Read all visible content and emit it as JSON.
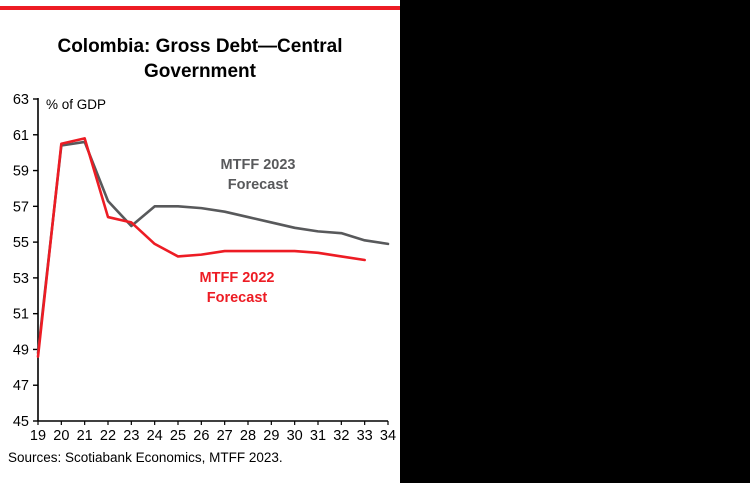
{
  "chart": {
    "title_line1": "Colombia: Gross Debt—Central",
    "title_line2": "Government",
    "unit_label": "% of GDP",
    "source": "Sources: Scotiabank Economics, MTFF 2023.",
    "series_labels": [
      {
        "line1": "MTFF 2023",
        "line2": "Forecast",
        "color": "#58595b"
      },
      {
        "line1": "MTFF 2022",
        "line2": "Forecast",
        "color": "#ED1C24"
      }
    ]
  },
  "chart_data": {
    "type": "line",
    "title": "Colombia: Gross Debt—Central Government",
    "xlabel": "",
    "ylabel": "% of GDP",
    "xlim": [
      19,
      34
    ],
    "ylim": [
      45,
      63
    ],
    "ytick_step": 2,
    "xticks": [
      19,
      20,
      21,
      22,
      23,
      24,
      25,
      26,
      27,
      28,
      29,
      30,
      31,
      32,
      33,
      34
    ],
    "grid": false,
    "legend_position": "inline-labels",
    "series": [
      {
        "name": "MTFF 2023 Forecast",
        "color": "#58595b",
        "x": [
          19,
          20,
          21,
          22,
          23,
          24,
          25,
          26,
          27,
          28,
          29,
          30,
          31,
          32,
          33,
          34
        ],
        "values": [
          48.8,
          60.4,
          60.6,
          57.3,
          55.9,
          57.0,
          57.0,
          56.9,
          56.7,
          56.4,
          56.1,
          55.8,
          55.6,
          55.5,
          55.1,
          54.9
        ]
      },
      {
        "name": "MTFF 2022 Forecast",
        "color": "#ED1C24",
        "x": [
          19,
          20,
          21,
          22,
          23,
          24,
          25,
          26,
          27,
          28,
          29,
          30,
          31,
          32,
          33
        ],
        "values": [
          48.6,
          60.5,
          60.8,
          56.4,
          56.1,
          54.9,
          54.2,
          54.3,
          54.5,
          54.5,
          54.5,
          54.5,
          54.4,
          54.2,
          54.0
        ]
      }
    ],
    "source": "Sources: Scotiabank Economics, MTFF 2023."
  }
}
